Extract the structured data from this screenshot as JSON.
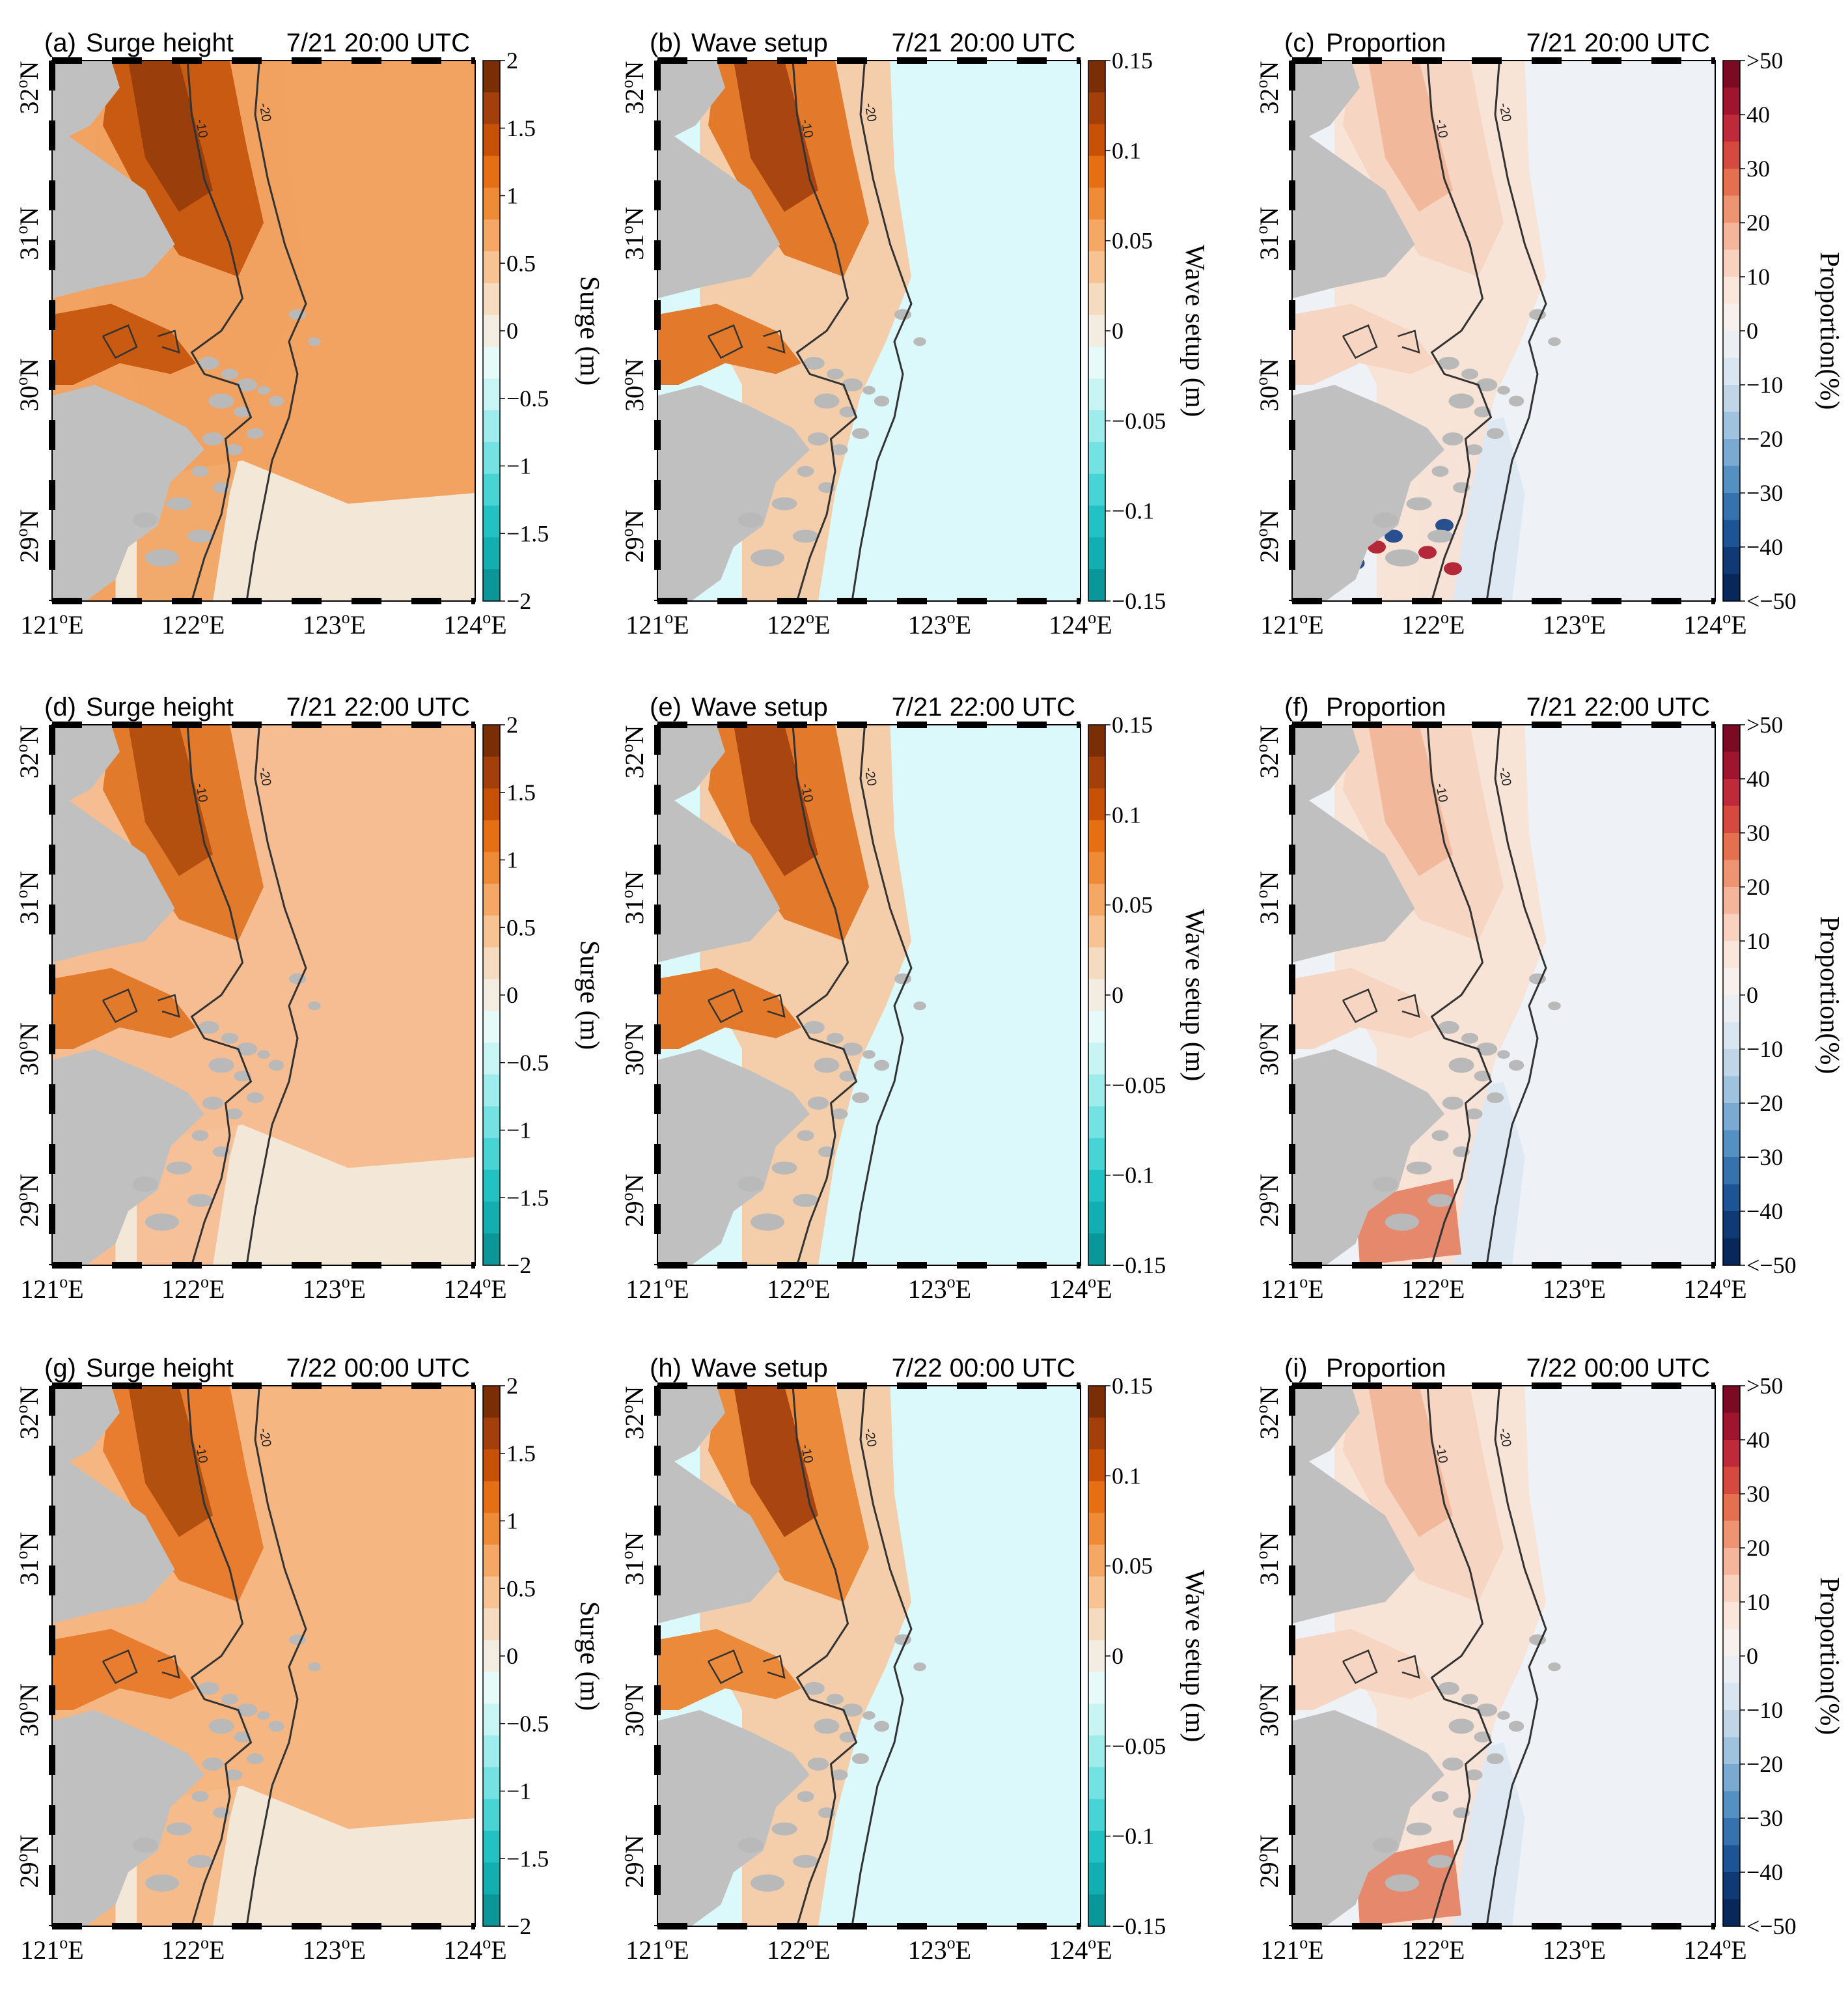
{
  "figure": {
    "description_free": true,
    "land_color": "#c0c0c0",
    "contour_color": "#333333",
    "contour_levels": [
      "-10",
      "-20"
    ],
    "lon_ticks": [
      "121",
      "122",
      "123",
      "124"
    ],
    "lat_ticks": [
      "32",
      "31",
      "30",
      "29"
    ],
    "lon_suffix": "E",
    "lat_suffix": "N",
    "deg": "o"
  },
  "colorbars": {
    "surge": {
      "label": "Surge (m)",
      "ticks": [
        "2",
        "1.5",
        "1",
        "0.5",
        "0",
        "−0.5",
        "−1",
        "−1.5",
        "−2"
      ],
      "colors": [
        "#7a2e06",
        "#a23f0a",
        "#c75207",
        "#e56f12",
        "#ef8a37",
        "#f5a766",
        "#f8c393",
        "#f5dcc0",
        "#f2ede0",
        "#e7fafa",
        "#c8f4f4",
        "#9eecec",
        "#74e1e2",
        "#48d3d5",
        "#22c1c4",
        "#12aeb1",
        "#0b9799"
      ]
    },
    "setup": {
      "label": "Wave setup (m)",
      "ticks": [
        "0.15",
        "0.1",
        "0.05",
        "0",
        "−0.05",
        "−0.1",
        "−0.15"
      ],
      "colors": [
        "#7a2e06",
        "#a23f0a",
        "#c75207",
        "#e56f12",
        "#ef8a37",
        "#f5a766",
        "#f8c393",
        "#f5dcc0",
        "#f2ede0",
        "#e7fafa",
        "#c8f4f4",
        "#9eecec",
        "#74e1e2",
        "#48d3d5",
        "#22c1c4",
        "#12aeb1",
        "#0b9799"
      ]
    },
    "proportion": {
      "label": "Proportion(%)",
      "ticks": [
        ">50",
        "40",
        "30",
        "20",
        "10",
        "0",
        "−10",
        "−20",
        "−30",
        "−40",
        "<−50"
      ],
      "colors": [
        "#7b0a22",
        "#9f1530",
        "#bf2a3a",
        "#d6493f",
        "#e4704f",
        "#ee9473",
        "#f4b59a",
        "#f8d2bf",
        "#fae6da",
        "#f7f0ec",
        "#ebeff4",
        "#d9e5f0",
        "#c0d6e8",
        "#9fc3df",
        "#7aaad2",
        "#5590c2",
        "#3672ad",
        "#1c5495",
        "#0f3a75",
        "#08275a"
      ]
    }
  },
  "panels": [
    {
      "letter": "(a)",
      "title": "Surge height",
      "time": "7/21 20:00 UTC",
      "type": "surge",
      "fill": "#f2a261",
      "dark": "#c85a12",
      "darker": "#9a3e0c",
      "south": "#f3e7d8"
    },
    {
      "letter": "(b)",
      "title": "Wave setup",
      "time": "7/21 20:00 UTC",
      "type": "setup",
      "fill": "#dbf8fa",
      "dark": "#e37a2b",
      "darker": "#a84510",
      "south": "#dbf8fa"
    },
    {
      "letter": "(c)",
      "title": "Proportion",
      "time": "7/21 20:00 UTC",
      "type": "proportion",
      "fill": "#eef1f6",
      "dark": "#f7d5c3",
      "darker": "#f2b89c",
      "south": "#dde8f2"
    },
    {
      "letter": "(d)",
      "title": "Surge height",
      "time": "7/21 22:00 UTC",
      "type": "surge",
      "fill": "#f6bd92",
      "dark": "#e27a2c",
      "darker": "#b4500f",
      "south": "#f3e7d8"
    },
    {
      "letter": "(e)",
      "title": "Wave setup",
      "time": "7/21 22:00 UTC",
      "type": "setup",
      "fill": "#dbf8fa",
      "dark": "#e37a2b",
      "darker": "#a84510",
      "south": "#dbf8fa"
    },
    {
      "letter": "(f)",
      "title": "Proportion",
      "time": "7/21 22:00 UTC",
      "type": "proportion",
      "fill": "#eef1f6",
      "dark": "#f7d5c3",
      "darker": "#f2b89c",
      "south": "#dde8f2"
    },
    {
      "letter": "(g)",
      "title": "Surge height",
      "time": "7/22 00:00 UTC",
      "type": "surge",
      "fill": "#f5b682",
      "dark": "#e87d30",
      "darker": "#b2500f",
      "south": "#f3e7d8"
    },
    {
      "letter": "(h)",
      "title": "Wave setup",
      "time": "7/22 00:00 UTC",
      "type": "setup",
      "fill": "#dbf8fa",
      "dark": "#ec8a3b",
      "darker": "#a84510",
      "south": "#dbf8fa"
    },
    {
      "letter": "(i)",
      "title": "Proportion",
      "time": "7/22 00:00 UTC",
      "type": "proportion",
      "fill": "#eef1f6",
      "dark": "#f7d5c3",
      "darker": "#f2b89c",
      "south": "#dde8f2"
    }
  ]
}
